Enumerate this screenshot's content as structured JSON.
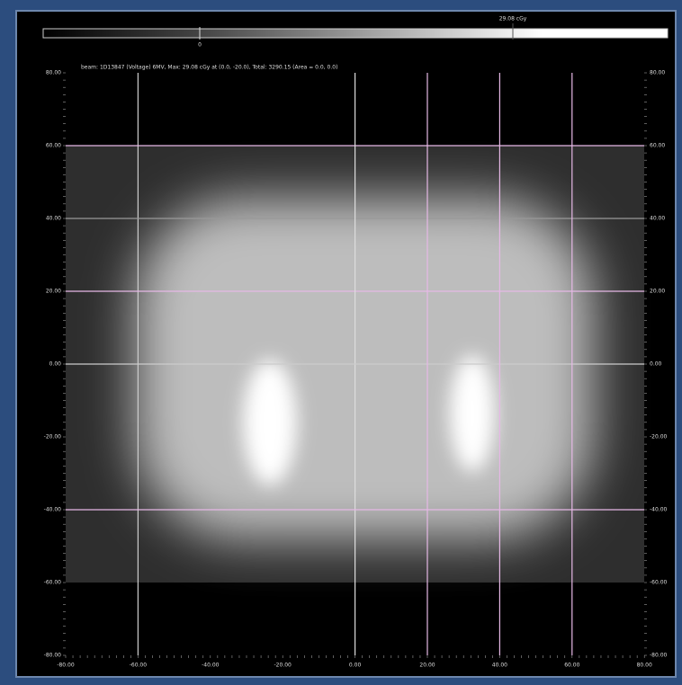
{
  "colorbar": {
    "min_label": "0",
    "max_label": "29.08 cGy"
  },
  "header": "beam: 1D13847 (Voltage) 6MV, Max: 29.08 cGy at (0.0, -20.0), Total: 3290.15 (Area = 0.0, 0.0)",
  "y_labels_left": [
    "80.00",
    "60.00",
    "40.00",
    "20.00",
    "0.00",
    "-20.00",
    "-40.00",
    "-60.00",
    "-80.00"
  ],
  "y_labels_right": [
    "80.00",
    "60.00",
    "40.00",
    "20.00",
    "0.00",
    "-20.00",
    "-40.00",
    "-60.00",
    "-80.00"
  ],
  "x_labels": [
    "-80.00",
    "-60.00",
    "-40.00",
    "-20.00",
    "0.00",
    "20.00",
    "40.00",
    "60.00",
    "80.00"
  ]
}
